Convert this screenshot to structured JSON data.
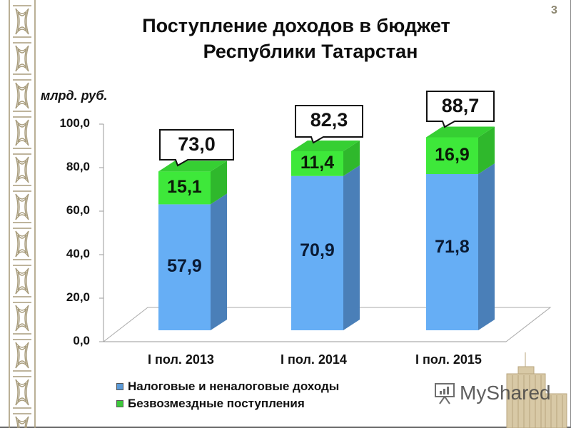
{
  "slide": {
    "page_number": "3",
    "title_line1": "Поступление доходов в бюджет",
    "title_line2": "Республики Татарстан",
    "unit_label": "млрд. руб."
  },
  "colors": {
    "tax_front": "#66aef5",
    "tax_side": "#4a7fb8",
    "grant_front": "#3ee83a",
    "grant_side": "#2fb82c",
    "grant_top": "#36cf33",
    "ornament": "#a89c7c"
  },
  "chart_data": {
    "type": "bar",
    "stacked": true,
    "three_d": true,
    "title": "Поступление доходов в бюджет Республики Татарстан",
    "ylabel": "млрд. руб.",
    "xlabel": "",
    "ylim": [
      0,
      100
    ],
    "yticks": [
      "0,0",
      "20,0",
      "40,0",
      "60,0",
      "80,0",
      "100,0"
    ],
    "categories": [
      "I пол. 2013",
      "I пол. 2014",
      "I пол. 2015"
    ],
    "series": [
      {
        "name": "Налоговые и неналоговые доходы",
        "values": [
          57.9,
          70.9,
          71.8
        ],
        "labels": [
          "57,9",
          "70,9",
          "71,8"
        ],
        "color": "#66aef5"
      },
      {
        "name": "Безвозмездные поступления",
        "values": [
          15.1,
          11.4,
          16.9
        ],
        "labels": [
          "15,1",
          "11,4",
          "16,9"
        ],
        "color": "#3ee83a"
      }
    ],
    "totals": [
      73.0,
      82.3,
      88.7
    ],
    "total_labels": [
      "73,0",
      "82,3",
      "88,7"
    ],
    "grid": false,
    "legend_position": "bottom-left"
  },
  "legend": [
    {
      "label": "Налоговые и неналоговые доходы"
    },
    {
      "label": "Безвозмездные поступления"
    }
  ],
  "watermark": {
    "text": "MyShared"
  }
}
